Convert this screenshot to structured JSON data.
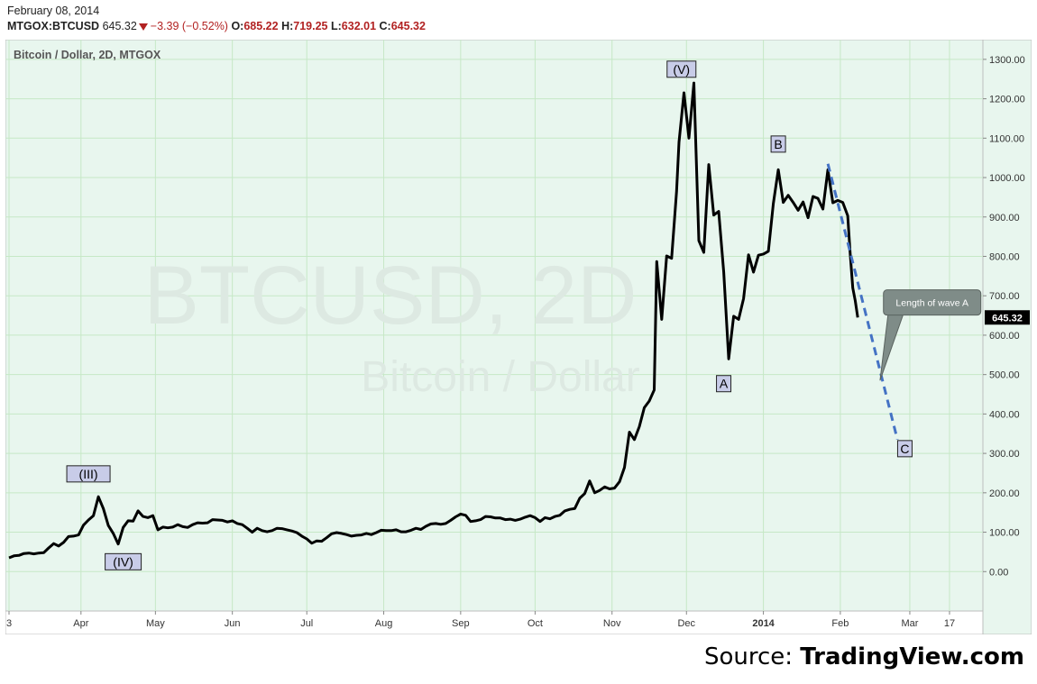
{
  "header": {
    "date": "February 08, 2014",
    "symbol": "MTGOX:BTCUSD",
    "last": "645.32",
    "change": "−3.39 (−0.52%)",
    "open_label": "O:",
    "open": "685.22",
    "high_label": "H:",
    "high": "719.25",
    "low_label": "L:",
    "low": "632.01",
    "close_label": "C:",
    "close": "645.32"
  },
  "colors": {
    "background": "#e8f6ee",
    "grid": "#c6e8c6",
    "price_line": "#000000",
    "projection": "#4472c4",
    "down": "#b22222",
    "label_fill": "#c8cce8",
    "callout_fill": "#7f8c88"
  },
  "source": {
    "prefix": "Source: ",
    "brand": "TradingView.com"
  },
  "chart_data": {
    "type": "line",
    "title": "Bitcoin / Dollar, 2D, MTGOX",
    "watermark_line1": "BTCUSD, 2D",
    "watermark_line2": "Bitcoin / Dollar",
    "last_price_label": "645.32",
    "y_range": [
      -100,
      1350
    ],
    "y_ticks": [
      0,
      100,
      200,
      300,
      400,
      500,
      600,
      700,
      800,
      900,
      1000,
      1100,
      1200,
      1300
    ],
    "y_tick_labels": [
      "0.00",
      "100.00",
      "200.00",
      "300.00",
      "400.00",
      "500.00",
      "600.00",
      "700.00",
      "800.00",
      "900.00",
      "1000.00",
      "1100.00",
      "1200.00",
      "1300.00"
    ],
    "x_range": [
      "2013-03-03",
      "2014-03-29"
    ],
    "x_ticks": [
      {
        "date": "2013-03-03",
        "label": "3",
        "bold": false
      },
      {
        "date": "2013-04-01",
        "label": "Apr",
        "bold": false
      },
      {
        "date": "2013-05-01",
        "label": "May",
        "bold": false
      },
      {
        "date": "2013-06-01",
        "label": "Jun",
        "bold": false
      },
      {
        "date": "2013-07-01",
        "label": "Jul",
        "bold": false
      },
      {
        "date": "2013-08-01",
        "label": "Aug",
        "bold": false
      },
      {
        "date": "2013-09-01",
        "label": "Sep",
        "bold": false
      },
      {
        "date": "2013-10-01",
        "label": "Oct",
        "bold": false
      },
      {
        "date": "2013-11-01",
        "label": "Nov",
        "bold": false
      },
      {
        "date": "2013-12-01",
        "label": "Dec",
        "bold": false
      },
      {
        "date": "2014-01-01",
        "label": "2014",
        "bold": true
      },
      {
        "date": "2014-02-01",
        "label": "Feb",
        "bold": false
      },
      {
        "date": "2014-03-01",
        "label": "Mar",
        "bold": false
      },
      {
        "date": "2014-03-17",
        "label": "17",
        "bold": false
      }
    ],
    "series": [
      {
        "points": [
          [
            "2013-03-03",
            35
          ],
          [
            "2013-03-05",
            40
          ],
          [
            "2013-03-07",
            41
          ],
          [
            "2013-03-09",
            46
          ],
          [
            "2013-03-11",
            47
          ],
          [
            "2013-03-13",
            45
          ],
          [
            "2013-03-15",
            47
          ],
          [
            "2013-03-17",
            48
          ],
          [
            "2013-03-19",
            60
          ],
          [
            "2013-03-21",
            71
          ],
          [
            "2013-03-23",
            65
          ],
          [
            "2013-03-25",
            74
          ],
          [
            "2013-03-27",
            89
          ],
          [
            "2013-03-29",
            90
          ],
          [
            "2013-03-31",
            93
          ],
          [
            "2013-04-02",
            118
          ],
          [
            "2013-04-04",
            131
          ],
          [
            "2013-04-06",
            142
          ],
          [
            "2013-04-08",
            190
          ],
          [
            "2013-04-10",
            160
          ],
          [
            "2013-04-12",
            117
          ],
          [
            "2013-04-14",
            97
          ],
          [
            "2013-04-16",
            70
          ],
          [
            "2013-04-18",
            112
          ],
          [
            "2013-04-20",
            129
          ],
          [
            "2013-04-22",
            128
          ],
          [
            "2013-04-24",
            154
          ],
          [
            "2013-04-26",
            140
          ],
          [
            "2013-04-28",
            137
          ],
          [
            "2013-04-30",
            142
          ],
          [
            "2013-05-02",
            106
          ],
          [
            "2013-05-04",
            113
          ],
          [
            "2013-05-06",
            111
          ],
          [
            "2013-05-08",
            113
          ],
          [
            "2013-05-10",
            119
          ],
          [
            "2013-05-12",
            114
          ],
          [
            "2013-05-14",
            112
          ],
          [
            "2013-05-16",
            119
          ],
          [
            "2013-05-18",
            124
          ],
          [
            "2013-05-20",
            123
          ],
          [
            "2013-05-22",
            124
          ],
          [
            "2013-05-24",
            132
          ],
          [
            "2013-05-26",
            131
          ],
          [
            "2013-05-28",
            130
          ],
          [
            "2013-05-30",
            126
          ],
          [
            "2013-06-01",
            129
          ],
          [
            "2013-06-03",
            122
          ],
          [
            "2013-06-05",
            119
          ],
          [
            "2013-06-07",
            110
          ],
          [
            "2013-06-09",
            100
          ],
          [
            "2013-06-11",
            110
          ],
          [
            "2013-06-13",
            104
          ],
          [
            "2013-06-15",
            101
          ],
          [
            "2013-06-17",
            104
          ],
          [
            "2013-06-19",
            110
          ],
          [
            "2013-06-21",
            109
          ],
          [
            "2013-06-23",
            106
          ],
          [
            "2013-06-25",
            103
          ],
          [
            "2013-06-27",
            99
          ],
          [
            "2013-06-29",
            90
          ],
          [
            "2013-07-01",
            83
          ],
          [
            "2013-07-03",
            72
          ],
          [
            "2013-07-05",
            78
          ],
          [
            "2013-07-07",
            77
          ],
          [
            "2013-07-09",
            86
          ],
          [
            "2013-07-11",
            96
          ],
          [
            "2013-07-13",
            99
          ],
          [
            "2013-07-15",
            97
          ],
          [
            "2013-07-17",
            94
          ],
          [
            "2013-07-19",
            90
          ],
          [
            "2013-07-21",
            92
          ],
          [
            "2013-07-23",
            93
          ],
          [
            "2013-07-25",
            97
          ],
          [
            "2013-07-27",
            94
          ],
          [
            "2013-07-29",
            99
          ],
          [
            "2013-07-31",
            105
          ],
          [
            "2013-08-02",
            104
          ],
          [
            "2013-08-04",
            104
          ],
          [
            "2013-08-06",
            106
          ],
          [
            "2013-08-08",
            101
          ],
          [
            "2013-08-10",
            101
          ],
          [
            "2013-08-12",
            105
          ],
          [
            "2013-08-14",
            110
          ],
          [
            "2013-08-16",
            107
          ],
          [
            "2013-08-18",
            115
          ],
          [
            "2013-08-20",
            121
          ],
          [
            "2013-08-22",
            122
          ],
          [
            "2013-08-24",
            120
          ],
          [
            "2013-08-26",
            122
          ],
          [
            "2013-08-28",
            130
          ],
          [
            "2013-08-30",
            139
          ],
          [
            "2013-09-01",
            146
          ],
          [
            "2013-09-03",
            143
          ],
          [
            "2013-09-05",
            127
          ],
          [
            "2013-09-07",
            129
          ],
          [
            "2013-09-09",
            132
          ],
          [
            "2013-09-11",
            140
          ],
          [
            "2013-09-13",
            139
          ],
          [
            "2013-09-15",
            136
          ],
          [
            "2013-09-17",
            136
          ],
          [
            "2013-09-19",
            132
          ],
          [
            "2013-09-21",
            133
          ],
          [
            "2013-09-23",
            130
          ],
          [
            "2013-09-25",
            133
          ],
          [
            "2013-09-27",
            138
          ],
          [
            "2013-09-29",
            142
          ],
          [
            "2013-10-01",
            137
          ],
          [
            "2013-10-03",
            127
          ],
          [
            "2013-10-05",
            137
          ],
          [
            "2013-10-07",
            134
          ],
          [
            "2013-10-09",
            140
          ],
          [
            "2013-10-11",
            143
          ],
          [
            "2013-10-13",
            154
          ],
          [
            "2013-10-15",
            158
          ],
          [
            "2013-10-17",
            160
          ],
          [
            "2013-10-19",
            186
          ],
          [
            "2013-10-21",
            198
          ],
          [
            "2013-10-23",
            230
          ],
          [
            "2013-10-25",
            200
          ],
          [
            "2013-10-27",
            206
          ],
          [
            "2013-10-29",
            215
          ],
          [
            "2013-10-31",
            210
          ],
          [
            "2013-11-02",
            212
          ],
          [
            "2013-11-04",
            228
          ],
          [
            "2013-11-06",
            264
          ],
          [
            "2013-11-08",
            354
          ],
          [
            "2013-11-10",
            335
          ],
          [
            "2013-11-12",
            368
          ],
          [
            "2013-11-14",
            416
          ],
          [
            "2013-11-16",
            433
          ],
          [
            "2013-11-18",
            461
          ],
          [
            "2013-11-19",
            787
          ],
          [
            "2013-11-21",
            640
          ],
          [
            "2013-11-23",
            801
          ],
          [
            "2013-11-25",
            795
          ],
          [
            "2013-11-27",
            965
          ],
          [
            "2013-11-28",
            1090
          ],
          [
            "2013-11-30",
            1215
          ],
          [
            "2013-12-02",
            1100
          ],
          [
            "2013-12-04",
            1240
          ],
          [
            "2013-12-06",
            840
          ],
          [
            "2013-12-08",
            810
          ],
          [
            "2013-12-10",
            1033
          ],
          [
            "2013-12-12",
            905
          ],
          [
            "2013-12-14",
            914
          ],
          [
            "2013-12-16",
            760
          ],
          [
            "2013-12-18",
            540
          ],
          [
            "2013-12-20",
            648
          ],
          [
            "2013-12-22",
            640
          ],
          [
            "2013-12-24",
            693
          ],
          [
            "2013-12-26",
            804
          ],
          [
            "2013-12-28",
            760
          ],
          [
            "2013-12-30",
            803
          ],
          [
            "2014-01-01",
            806
          ],
          [
            "2014-01-03",
            813
          ],
          [
            "2014-01-05",
            934
          ],
          [
            "2014-01-07",
            1020
          ],
          [
            "2014-01-09",
            937
          ],
          [
            "2014-01-11",
            955
          ],
          [
            "2014-01-13",
            937
          ],
          [
            "2014-01-15",
            917
          ],
          [
            "2014-01-17",
            938
          ],
          [
            "2014-01-19",
            898
          ],
          [
            "2014-01-21",
            952
          ],
          [
            "2014-01-23",
            947
          ],
          [
            "2014-01-25",
            920
          ],
          [
            "2014-01-27",
            1020
          ],
          [
            "2014-01-29",
            936
          ],
          [
            "2014-01-31",
            942
          ],
          [
            "2014-02-02",
            937
          ],
          [
            "2014-02-04",
            903
          ],
          [
            "2014-02-05",
            805
          ],
          [
            "2014-02-06",
            720
          ],
          [
            "2014-02-07",
            688
          ],
          [
            "2014-02-08",
            645
          ]
        ]
      }
    ],
    "projection": {
      "from": [
        "2014-01-27",
        1035
      ],
      "to": [
        "2014-02-24",
        335
      ],
      "style": "dashed"
    },
    "annotations": [
      {
        "text": "(III)",
        "date": "2013-04-04",
        "value": 248
      },
      {
        "text": "(IV)",
        "date": "2013-04-18",
        "value": 25
      },
      {
        "text": "(V)",
        "date": "2013-11-29",
        "value": 1275
      },
      {
        "text": "A",
        "date": "2013-12-16",
        "value": 477
      },
      {
        "text": "B",
        "date": "2014-01-07",
        "value": 1085
      },
      {
        "text": "C",
        "date": "2014-02-27",
        "value": 312
      }
    ],
    "callout": {
      "text": "Length of wave A",
      "target_date": "2014-02-17",
      "target_value": 485,
      "box_date": "2014-03-10",
      "box_value": 683
    }
  }
}
